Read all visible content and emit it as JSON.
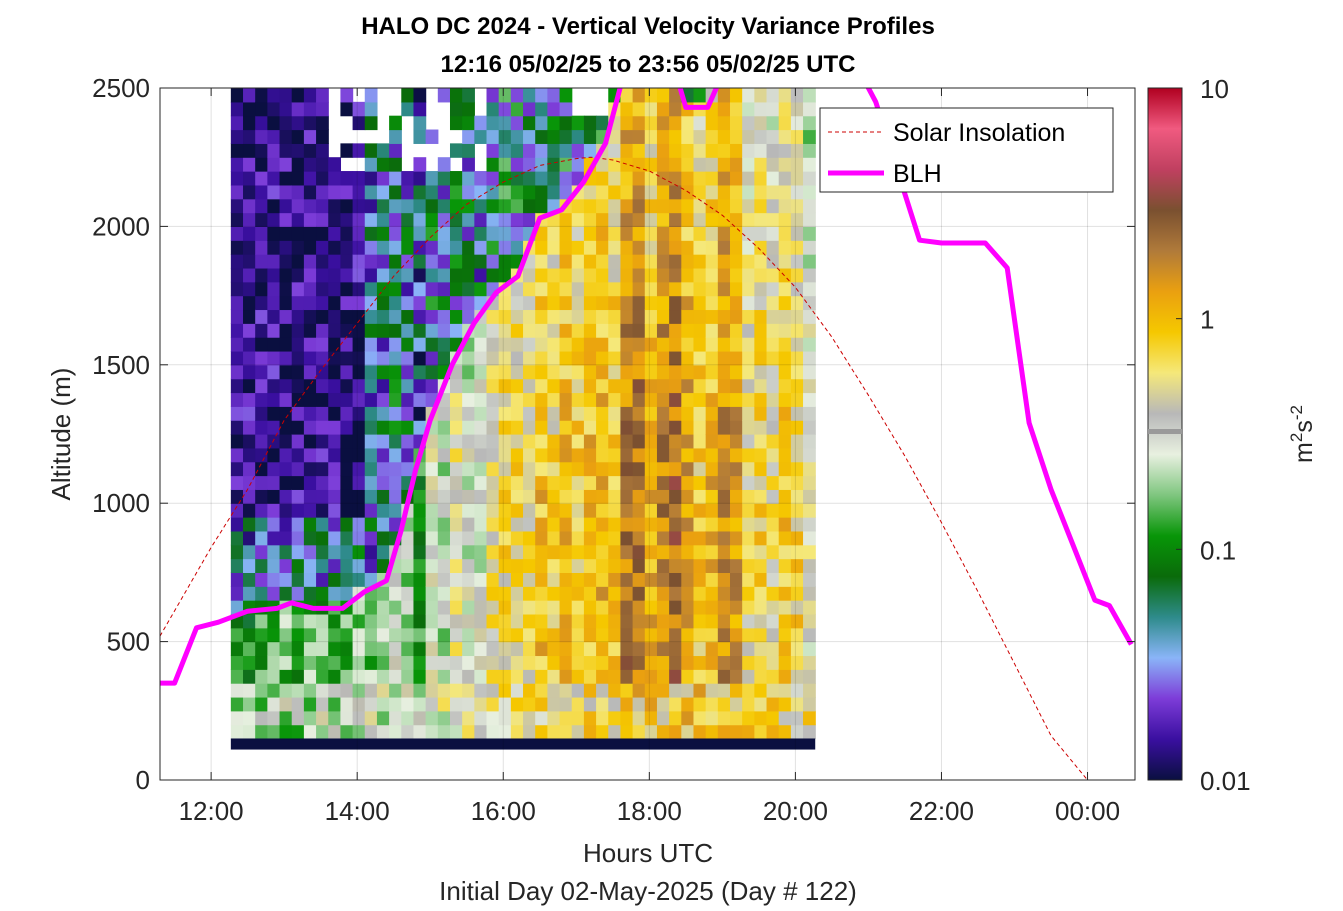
{
  "chart_data": {
    "type": "heatmap",
    "title": "HALO DC 2024 - Vertical Velocity Variance Profiles",
    "subtitle": "12:16 05/02/25 to 23:56 05/02/25  UTC",
    "xlabel": "Hours UTC",
    "xlabel2": "Initial Day 02-May-2025 (Day # 122)",
    "ylabel": "Altitude (m)",
    "x_ticks": [
      "12:00",
      "14:00",
      "16:00",
      "18:00",
      "20:00",
      "22:00",
      "00:00"
    ],
    "x_tick_hours": [
      12,
      14,
      16,
      18,
      20,
      22,
      24
    ],
    "xlim": [
      11.3,
      24.65
    ],
    "y_ticks": [
      "0",
      "500",
      "1000",
      "1500",
      "2000",
      "2500"
    ],
    "y_tick_values": [
      0,
      500,
      1000,
      1500,
      2000,
      2500
    ],
    "ylim": [
      0,
      2500
    ],
    "grid": true,
    "legend_position": "top-right",
    "colorbar": {
      "label": "m2s-2",
      "label_base": "m",
      "label_sup1": "2",
      "label_mid": "s",
      "label_sup2": "-2",
      "scale": "log",
      "range": [
        0.01,
        10
      ],
      "ticks": [
        "10",
        "1",
        "0.1",
        "0.01"
      ],
      "tick_values": [
        10,
        1,
        0.1,
        0.01
      ],
      "colors": [
        "#0a0f40",
        "#3a0fa0",
        "#7d3cd8",
        "#8ab4f8",
        "#2e8b8b",
        "#0a6b0a",
        "#089608",
        "#7fc67f",
        "#e8f0e0",
        "#b8b8b8",
        "#f5e87a",
        "#f5c800",
        "#eaa010",
        "#b07a3a",
        "#7a5030",
        "#c04060",
        "#f05a80",
        "#b00020"
      ]
    },
    "heatmap": {
      "x_start_hour": 12.27,
      "x_step_hour": 0.1667,
      "y_start_m": 150,
      "y_step_m": 50,
      "description_of_values": "variance in m2 s-2, log scale"
    },
    "noise_row": {
      "altitude_range": [
        110,
        150
      ],
      "color": "#0a0f40"
    },
    "series": [
      {
        "name": "Solar Insolation",
        "style": "dashed",
        "color": "#cc0000",
        "x": [
          11.3,
          12.0,
          12.5,
          13.0,
          13.5,
          14.0,
          14.5,
          15.0,
          15.5,
          16.0,
          16.5,
          17.0,
          17.2,
          17.5,
          18.0,
          18.5,
          19.0,
          19.5,
          20.0,
          20.5,
          21.0,
          21.5,
          22.0,
          22.5,
          23.0,
          23.5,
          24.0,
          24.6
        ],
        "y": [
          520,
          840,
          1050,
          1300,
          1480,
          1650,
          1820,
          1960,
          2080,
          2160,
          2220,
          2245,
          2250,
          2240,
          2200,
          2130,
          2040,
          1920,
          1780,
          1600,
          1390,
          1170,
          930,
          680,
          420,
          160,
          0,
          0
        ]
      },
      {
        "name": "BLH",
        "style": "solid",
        "color": "#ff00ff",
        "x": [
          11.3,
          11.5,
          11.8,
          12.1,
          12.5,
          12.9,
          13.1,
          13.4,
          13.8,
          14.1,
          14.4,
          14.6,
          14.8,
          15.0,
          15.3,
          15.6,
          15.9,
          16.2,
          16.5,
          16.8,
          17.1,
          17.4,
          17.6,
          17.8,
          18.0,
          18.2,
          18.5,
          18.8,
          19.0,
          19.3,
          19.6,
          19.9,
          20.2,
          20.5,
          20.8,
          21.1,
          21.4,
          21.7,
          22.0,
          22.3,
          22.6,
          22.9,
          23.2,
          23.5,
          23.8,
          24.1,
          24.3,
          24.6
        ],
        "y": [
          350,
          350,
          550,
          570,
          610,
          620,
          640,
          620,
          620,
          680,
          720,
          900,
          1120,
          1300,
          1500,
          1650,
          1760,
          1820,
          2030,
          2060,
          2160,
          2300,
          2500,
          2700,
          2850,
          2700,
          2430,
          2430,
          2550,
          2650,
          2800,
          2900,
          2850,
          2750,
          2600,
          2450,
          2200,
          1950,
          1940,
          1940,
          1940,
          1850,
          1290,
          1050,
          850,
          650,
          630,
          490
        ]
      }
    ]
  }
}
